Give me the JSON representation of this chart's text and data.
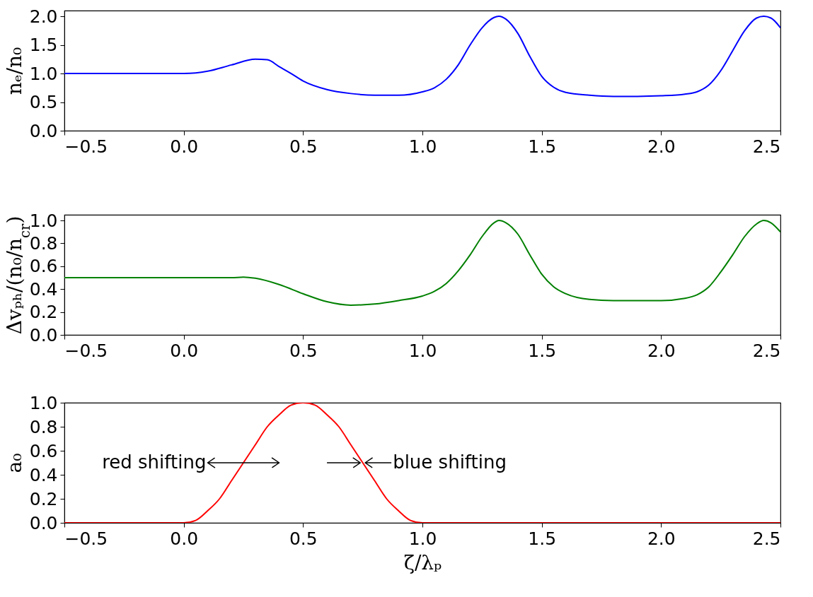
{
  "chart_data": [
    {
      "type": "line",
      "ylabel": "nₑ/n₀",
      "xlim": [
        -0.5,
        2.5
      ],
      "ylim": [
        0,
        2.1
      ],
      "xticks": [
        {
          "value": -0.5,
          "label": "−0.5"
        },
        {
          "value": 0,
          "label": "0.0"
        },
        {
          "value": 0.5,
          "label": "0.5"
        },
        {
          "value": 1,
          "label": "1.0"
        },
        {
          "value": 1.5,
          "label": "1.5"
        },
        {
          "value": 2,
          "label": "2.0"
        },
        {
          "value": 2.5,
          "label": "2.5"
        }
      ],
      "yticks": [
        {
          "value": 0,
          "label": "0.0"
        },
        {
          "value": 0.5,
          "label": "0.5"
        },
        {
          "value": 1,
          "label": "1.0"
        },
        {
          "value": 1.5,
          "label": "1.5"
        },
        {
          "value": 2,
          "label": "2.0"
        }
      ],
      "x": [
        -0.5,
        0,
        0.05,
        0.1,
        0.2,
        0.3,
        0.35,
        0.4,
        0.45,
        0.5,
        0.6,
        0.7,
        0.8,
        0.9,
        1.0,
        1.05,
        1.1,
        1.15,
        1.2,
        1.25,
        1.3,
        1.32,
        1.35,
        1.4,
        1.45,
        1.5,
        1.55,
        1.6,
        1.7,
        1.8,
        1.9,
        2.0,
        2.1,
        2.15,
        2.2,
        2.25,
        2.3,
        2.35,
        2.4,
        2.43,
        2.46,
        2.5
      ],
      "series": [
        {
          "color": "#0000ff",
          "values": [
            1.0,
            1.0,
            1.01,
            1.04,
            1.15,
            1.25,
            1.24,
            1.12,
            1.0,
            0.87,
            0.72,
            0.65,
            0.62,
            0.62,
            0.68,
            0.75,
            0.9,
            1.15,
            1.5,
            1.8,
            1.98,
            2.0,
            1.95,
            1.7,
            1.3,
            0.95,
            0.76,
            0.67,
            0.62,
            0.6,
            0.6,
            0.61,
            0.64,
            0.68,
            0.8,
            1.05,
            1.4,
            1.75,
            1.97,
            2.0,
            1.97,
            1.8
          ]
        }
      ]
    },
    {
      "type": "line",
      "ylabel": "Δvₚₕ/(n₀/n$_{cr}$)",
      "xlim": [
        -0.5,
        2.5
      ],
      "ylim": [
        0,
        1.05
      ],
      "xticks": [
        {
          "value": -0.5,
          "label": "−0.5"
        },
        {
          "value": 0,
          "label": "0.0"
        },
        {
          "value": 0.5,
          "label": "0.5"
        },
        {
          "value": 1,
          "label": "1.0"
        },
        {
          "value": 1.5,
          "label": "1.5"
        },
        {
          "value": 2,
          "label": "2.0"
        },
        {
          "value": 2.5,
          "label": "2.5"
        }
      ],
      "yticks": [
        {
          "value": 0,
          "label": "0.0"
        },
        {
          "value": 0.2,
          "label": "0.2"
        },
        {
          "value": 0.4,
          "label": "0.4"
        },
        {
          "value": 0.6,
          "label": "0.6"
        },
        {
          "value": 0.8,
          "label": "0.8"
        },
        {
          "value": 1,
          "label": "1.0"
        }
      ],
      "x": [
        -0.5,
        0.2,
        0.25,
        0.3,
        0.4,
        0.5,
        0.6,
        0.7,
        0.8,
        0.9,
        1.0,
        1.05,
        1.1,
        1.15,
        1.2,
        1.25,
        1.3,
        1.32,
        1.35,
        1.4,
        1.45,
        1.5,
        1.55,
        1.6,
        1.7,
        1.8,
        1.9,
        2.0,
        2.1,
        2.15,
        2.2,
        2.25,
        2.3,
        2.35,
        2.4,
        2.43,
        2.46,
        2.5
      ],
      "series": [
        {
          "color": "#008000",
          "values": [
            0.5,
            0.5,
            0.505,
            0.495,
            0.44,
            0.36,
            0.29,
            0.26,
            0.27,
            0.3,
            0.34,
            0.38,
            0.45,
            0.56,
            0.7,
            0.86,
            0.98,
            1.0,
            0.98,
            0.88,
            0.7,
            0.53,
            0.42,
            0.36,
            0.31,
            0.3,
            0.3,
            0.3,
            0.32,
            0.35,
            0.42,
            0.55,
            0.7,
            0.86,
            0.97,
            1.0,
            0.98,
            0.9
          ]
        }
      ]
    },
    {
      "type": "line",
      "ylabel": "a₀",
      "xlabel": "ζ/λₚ",
      "xlim": [
        -0.5,
        2.5
      ],
      "ylim": [
        0,
        1.0
      ],
      "xticks": [
        {
          "value": -0.5,
          "label": "−0.5"
        },
        {
          "value": 0,
          "label": "0.0"
        },
        {
          "value": 0.5,
          "label": "0.5"
        },
        {
          "value": 1,
          "label": "1.0"
        },
        {
          "value": 1.5,
          "label": "1.5"
        },
        {
          "value": 2,
          "label": "2.0"
        },
        {
          "value": 2.5,
          "label": "2.5"
        }
      ],
      "yticks": [
        {
          "value": 0,
          "label": "0.0"
        },
        {
          "value": 0.2,
          "label": "0.2"
        },
        {
          "value": 0.4,
          "label": "0.4"
        },
        {
          "value": 0.6,
          "label": "0.6"
        },
        {
          "value": 0.8,
          "label": "0.8"
        },
        {
          "value": 1,
          "label": "1.0"
        }
      ],
      "x": [
        -0.5,
        0,
        0.05,
        0.1,
        0.15,
        0.2,
        0.25,
        0.3,
        0.35,
        0.4,
        0.45,
        0.5,
        0.55,
        0.6,
        0.65,
        0.7,
        0.75,
        0.8,
        0.85,
        0.9,
        0.95,
        1.0,
        2.5
      ],
      "series": [
        {
          "color": "#ff0000",
          "values": [
            0,
            0,
            0.02,
            0.1,
            0.2,
            0.35,
            0.5,
            0.65,
            0.8,
            0.9,
            0.98,
            1.0,
            0.98,
            0.9,
            0.8,
            0.65,
            0.5,
            0.35,
            0.2,
            0.1,
            0.02,
            0,
            0
          ]
        }
      ],
      "annotations": [
        {
          "text": "red shifting",
          "x": 0.25,
          "y": 0.5
        },
        {
          "text": "blue shifting",
          "x": 0.75,
          "y": 0.5
        }
      ]
    }
  ]
}
